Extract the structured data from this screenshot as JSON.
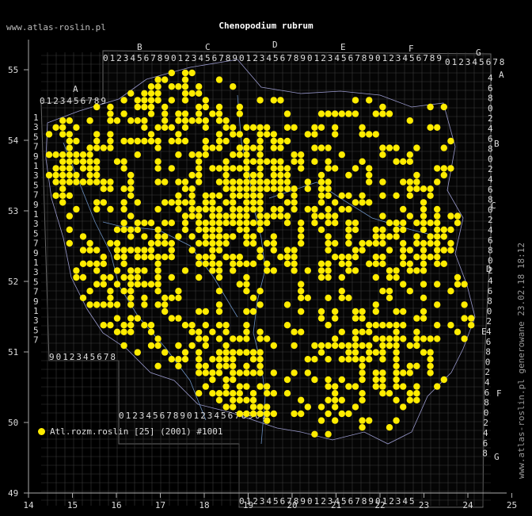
{
  "header": {
    "site": "www.atlas-roslin.pl",
    "title": "Chenopodium rubrum",
    "generated": "www.atlas-roslin.pl generowane 23.02.18 18:12"
  },
  "legend": {
    "label": "Atl.rozm.roslin [25] (2001) #1001",
    "color": "#ffec00"
  },
  "axes": {
    "x_ticks": [
      "14",
      "15",
      "16",
      "17",
      "18",
      "19",
      "20",
      "21",
      "22",
      "23",
      "24",
      "25"
    ],
    "y_ticks": [
      "55",
      "54",
      "53",
      "52",
      "51",
      "50",
      "49"
    ],
    "left_digits": [
      "1",
      "3",
      "5",
      "7",
      "9",
      "1",
      "3",
      "5",
      "7",
      "9",
      "1",
      "3",
      "5",
      "7",
      "9",
      "1",
      "3",
      "5",
      "7",
      "9",
      "1",
      "3",
      "5",
      "7"
    ],
    "right_digits": [
      "4",
      "6",
      "8",
      "0",
      "2",
      "4",
      "6",
      "8",
      "0",
      "2",
      "4",
      "6",
      "8",
      "0",
      "2",
      "4",
      "6",
      "8",
      "0",
      "2",
      "4",
      "6",
      "8",
      "0",
      "2",
      "4",
      "6",
      "8",
      "0",
      "2",
      "4",
      "6",
      "8",
      "0",
      "2",
      "4",
      "6",
      "8"
    ],
    "column_letters": [
      "A",
      "B",
      "C",
      "D",
      "E",
      "F",
      "G"
    ],
    "row_letters_right": [
      "A",
      "B",
      "C",
      "D",
      "E",
      "F",
      "G"
    ],
    "top_digits": "0123456789",
    "top_digits_g": "012345678",
    "top_digits_a": "0123456789",
    "bottom_left_digits": "9012345678",
    "bottom_mid_digits": "0123456789012345678901",
    "bottom_right_digits": "01234567890123456789012345"
  },
  "map_data": {
    "type": "dot-distribution-map",
    "lon_range": [
      14,
      25
    ],
    "lat_range": [
      49,
      55.5
    ],
    "occurrence_count_approx": 1050
  }
}
